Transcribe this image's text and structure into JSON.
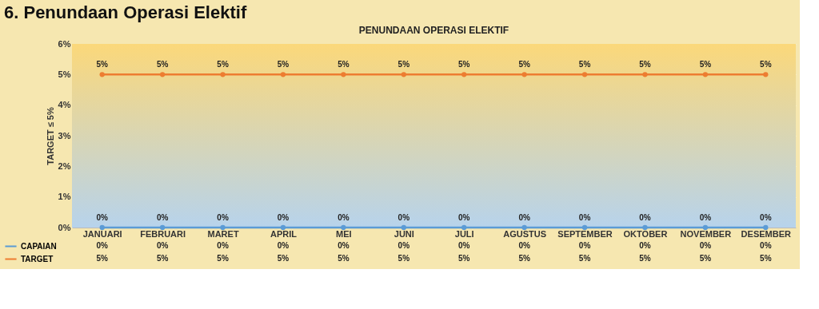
{
  "chart_data": {
    "type": "line",
    "title": "6. Penundaan Operasi Elektif",
    "subtitle": "PENUNDAAN OPERASI ELEKTIF",
    "ylabel": "TARGET ≤ 5%",
    "categories": [
      "JANUARI",
      "FEBRUARI",
      "MARET",
      "APRIL",
      "MEI",
      "JUNI",
      "JULI",
      "AGUSTUS",
      "SEPTEMBER",
      "OKTOBER",
      "NOVEMBER",
      "DESEMBER"
    ],
    "series": [
      {
        "name": "CAPAIAN",
        "color": "#5b9bd5",
        "values": [
          0,
          0,
          0,
          0,
          0,
          0,
          0,
          0,
          0,
          0,
          0,
          0
        ],
        "value_labels": [
          "0%",
          "0%",
          "0%",
          "0%",
          "0%",
          "0%",
          "0%",
          "0%",
          "0%",
          "0%",
          "0%",
          "0%"
        ]
      },
      {
        "name": "TARGET",
        "color": "#ed7d31",
        "values": [
          5,
          5,
          5,
          5,
          5,
          5,
          5,
          5,
          5,
          5,
          5,
          5
        ],
        "value_labels": [
          "5%",
          "5%",
          "5%",
          "5%",
          "5%",
          "5%",
          "5%",
          "5%",
          "5%",
          "5%",
          "5%",
          "5%"
        ]
      }
    ],
    "ylim": [
      0,
      6
    ],
    "yticks": [
      {
        "value": 0,
        "label": "0%"
      },
      {
        "value": 1,
        "label": "1%"
      },
      {
        "value": 2,
        "label": "2%"
      },
      {
        "value": 3,
        "label": "3%"
      },
      {
        "value": 4,
        "label": "4%"
      },
      {
        "value": 5,
        "label": "5%"
      },
      {
        "value": 6,
        "label": "6%"
      }
    ],
    "grid": "y",
    "marker": "circle",
    "line_style": "solid",
    "legend": "bottom left"
  }
}
